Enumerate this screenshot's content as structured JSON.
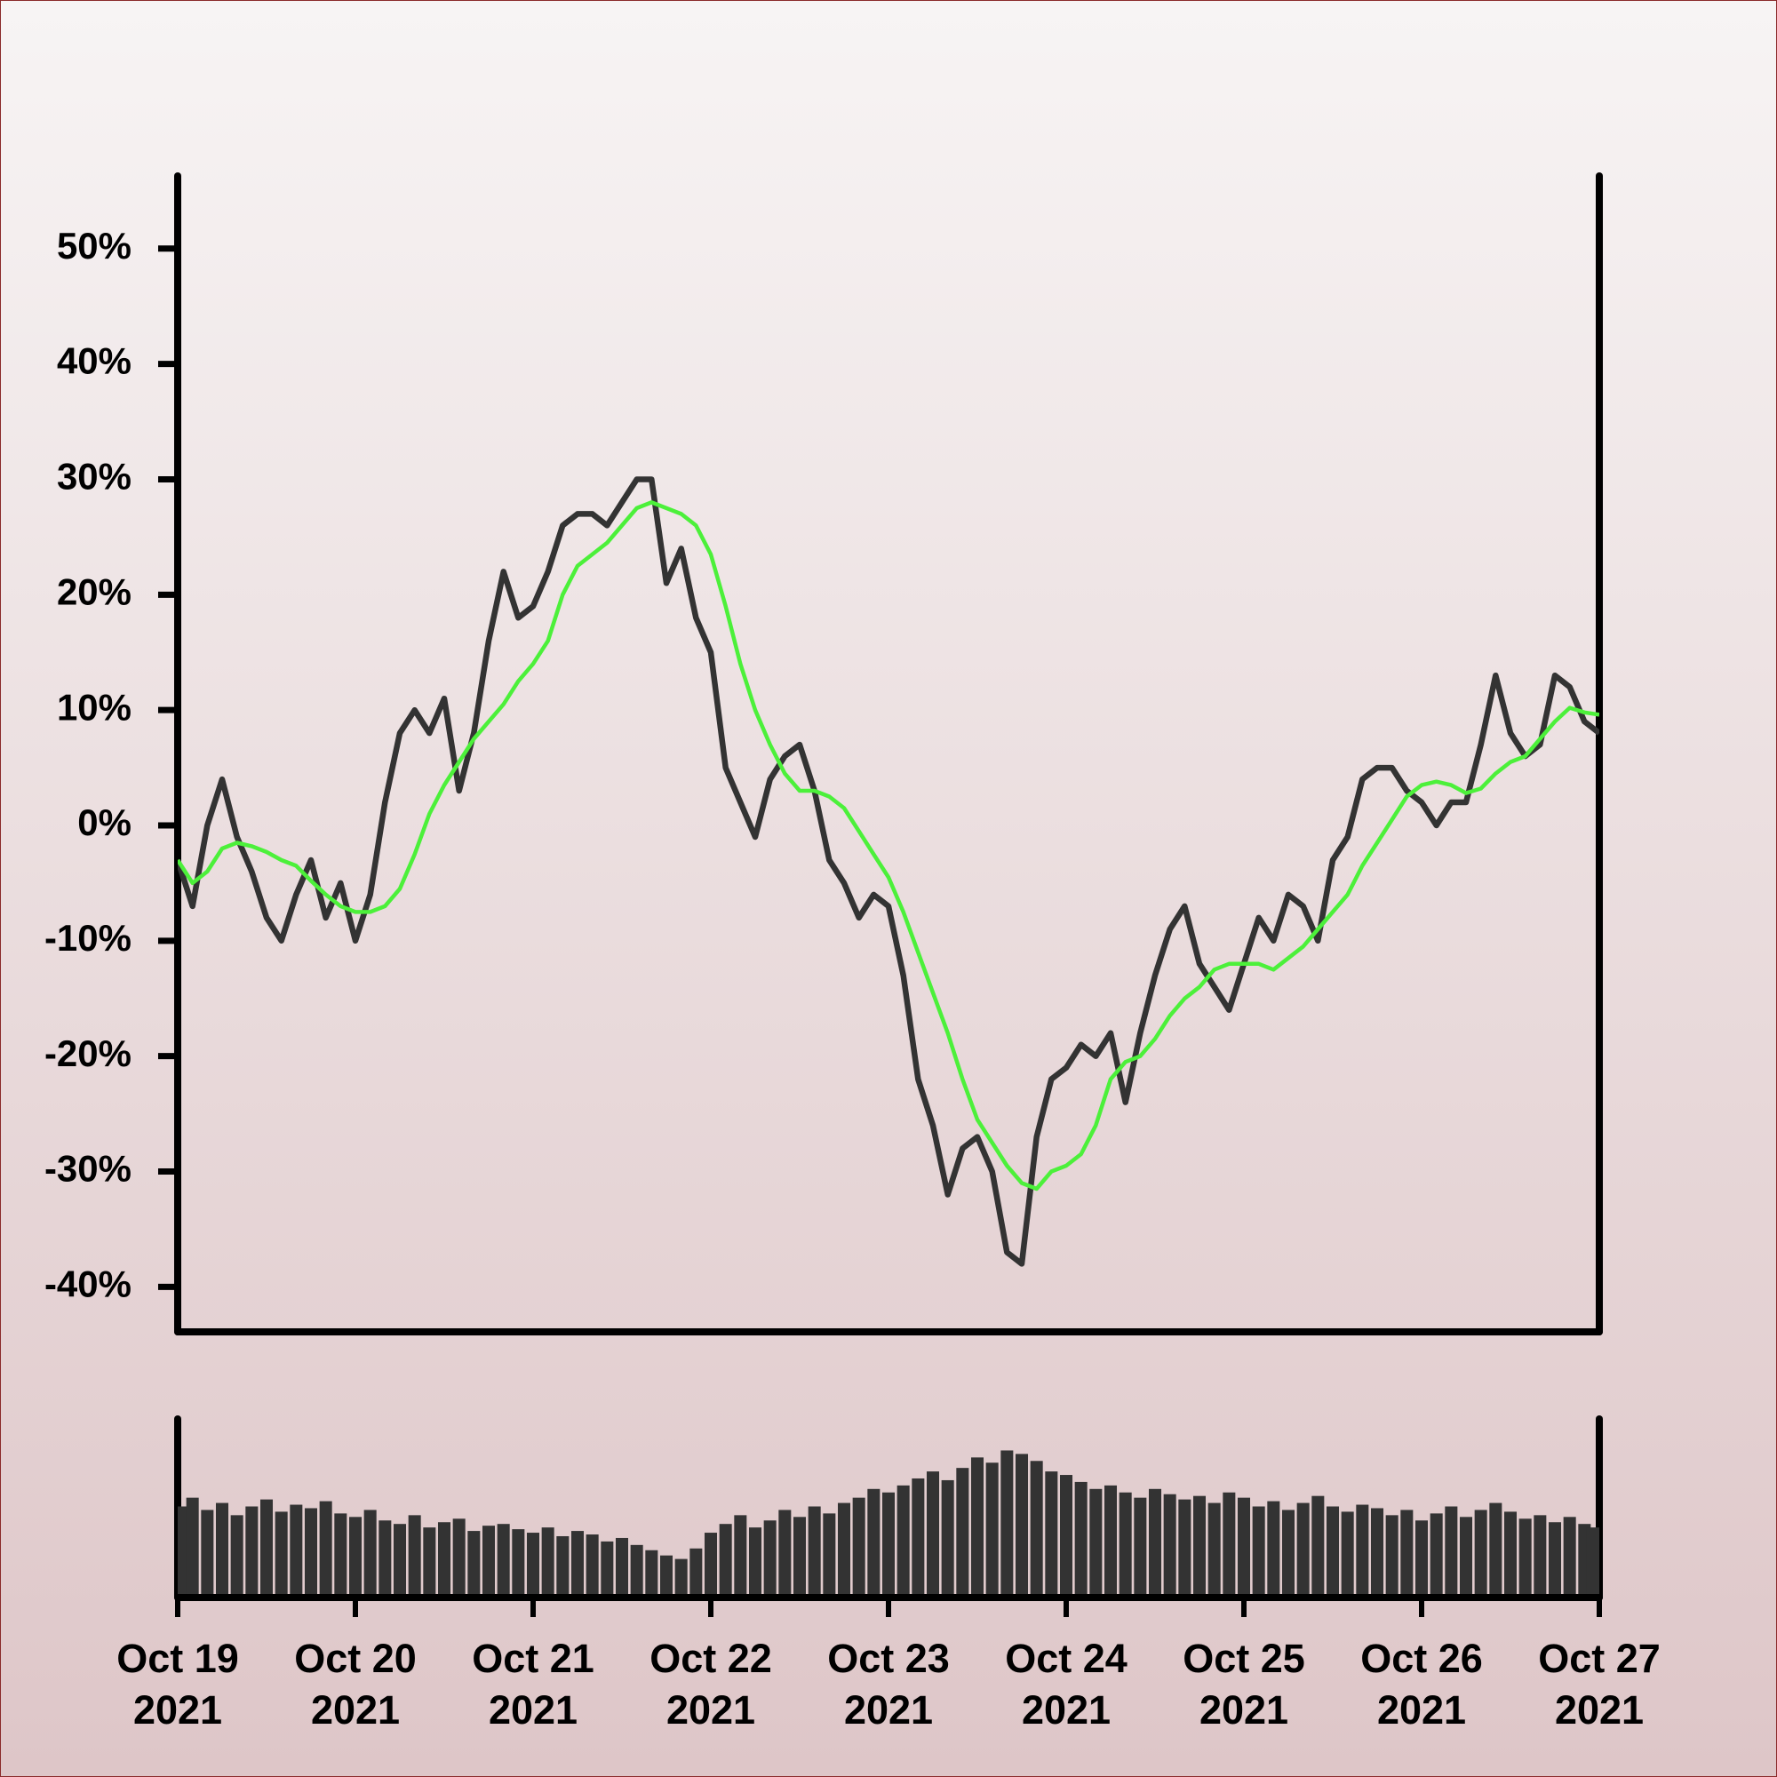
{
  "chart_data": [
    {
      "type": "line",
      "x": [
        "2021-10-19 00:00",
        "2021-10-19 02:00",
        "2021-10-19 04:00",
        "2021-10-19 06:00",
        "2021-10-19 08:00",
        "2021-10-19 10:00",
        "2021-10-19 12:00",
        "2021-10-19 14:00",
        "2021-10-19 16:00",
        "2021-10-19 18:00",
        "2021-10-19 20:00",
        "2021-10-19 22:00",
        "2021-10-20 00:00",
        "2021-10-20 02:00",
        "2021-10-20 04:00",
        "2021-10-20 06:00",
        "2021-10-20 08:00",
        "2021-10-20 10:00",
        "2021-10-20 12:00",
        "2021-10-20 14:00",
        "2021-10-20 16:00",
        "2021-10-20 18:00",
        "2021-10-20 20:00",
        "2021-10-20 22:00",
        "2021-10-21 00:00",
        "2021-10-21 02:00",
        "2021-10-21 04:00",
        "2021-10-21 06:00",
        "2021-10-21 08:00",
        "2021-10-21 10:00",
        "2021-10-21 12:00",
        "2021-10-21 14:00",
        "2021-10-21 16:00",
        "2021-10-21 18:00",
        "2021-10-21 20:00",
        "2021-10-21 22:00",
        "2021-10-22 00:00",
        "2021-10-22 02:00",
        "2021-10-22 04:00",
        "2021-10-22 06:00",
        "2021-10-22 08:00",
        "2021-10-22 10:00",
        "2021-10-22 12:00",
        "2021-10-22 14:00",
        "2021-10-22 16:00",
        "2021-10-22 18:00",
        "2021-10-22 20:00",
        "2021-10-22 22:00",
        "2021-10-23 00:00",
        "2021-10-23 02:00",
        "2021-10-23 04:00",
        "2021-10-23 06:00",
        "2021-10-23 08:00",
        "2021-10-23 10:00",
        "2021-10-23 12:00",
        "2021-10-23 14:00",
        "2021-10-23 16:00",
        "2021-10-23 18:00",
        "2021-10-23 20:00",
        "2021-10-23 22:00",
        "2021-10-24 00:00",
        "2021-10-24 02:00",
        "2021-10-24 04:00",
        "2021-10-24 06:00",
        "2021-10-24 08:00",
        "2021-10-24 10:00",
        "2021-10-24 12:00",
        "2021-10-24 14:00",
        "2021-10-24 16:00",
        "2021-10-24 18:00",
        "2021-10-24 20:00",
        "2021-10-24 22:00",
        "2021-10-25 00:00",
        "2021-10-25 02:00",
        "2021-10-25 04:00",
        "2021-10-25 06:00",
        "2021-10-25 08:00",
        "2021-10-25 10:00",
        "2021-10-25 12:00",
        "2021-10-25 14:00",
        "2021-10-25 16:00",
        "2021-10-25 18:00",
        "2021-10-25 20:00",
        "2021-10-25 22:00",
        "2021-10-26 00:00",
        "2021-10-26 02:00",
        "2021-10-26 04:00",
        "2021-10-26 06:00",
        "2021-10-26 08:00",
        "2021-10-26 10:00",
        "2021-10-26 12:00",
        "2021-10-26 14:00",
        "2021-10-26 16:00",
        "2021-10-26 18:00",
        "2021-10-26 20:00",
        "2021-10-26 22:00",
        "2021-10-27 00:00"
      ],
      "series": [
        {
          "color": "#333333",
          "values": [
            -3,
            -7,
            0,
            4,
            -1,
            -4,
            -8,
            -10,
            -6,
            -3,
            -8,
            -5,
            -10,
            -6,
            2,
            8,
            10,
            8,
            11,
            3,
            8,
            16,
            22,
            18,
            19,
            22,
            26,
            27,
            27,
            26,
            28,
            30,
            30,
            21,
            24,
            18,
            15,
            5,
            2,
            -1,
            4,
            6,
            7,
            3,
            -3,
            -5,
            -8,
            -6,
            -7,
            -13,
            -22,
            -26,
            -32,
            -28,
            -27,
            -30,
            -37,
            -38,
            -27,
            -22,
            -21,
            -19,
            -20,
            -18,
            -24,
            -18,
            -13,
            -9,
            -7,
            -12,
            -14,
            -16,
            -12,
            -8,
            -10,
            -6,
            -7,
            -10,
            -3,
            -1,
            4,
            5,
            5,
            3,
            2,
            0,
            2,
            2,
            7,
            13,
            8,
            6,
            7,
            13,
            12,
            9,
            8
          ]
        },
        {
          "color": "#4cf03a",
          "values": [
            -3,
            -5,
            -4,
            -2,
            -1.5,
            -1.8,
            -2.3,
            -3,
            -3.5,
            -4.8,
            -6,
            -7,
            -7.5,
            -7.5,
            -7,
            -5.5,
            -2.5,
            1,
            3.5,
            5.5,
            7.5,
            9,
            10.5,
            12.5,
            14,
            16,
            20,
            22.5,
            23.5,
            24.5,
            26,
            27.5,
            28,
            27.5,
            27,
            26,
            23.5,
            19,
            14,
            10,
            7,
            4.5,
            3,
            3,
            2.5,
            1.5,
            -0.5,
            -2.5,
            -4.5,
            -7.5,
            -11,
            -14.5,
            -18,
            -22,
            -25.5,
            -27.5,
            -29.5,
            -31,
            -31.5,
            -30,
            -29.5,
            -28.5,
            -26,
            -22,
            -20.5,
            -20,
            -18.5,
            -16.5,
            -15,
            -14,
            -12.5,
            -12,
            -12,
            -12,
            -12.5,
            -11.5,
            -10.5,
            -9,
            -7.5,
            -6,
            -3.5,
            -1.5,
            0.5,
            2.5,
            3.5,
            3.8,
            3.5,
            2.8,
            3.2,
            4.5,
            5.5,
            6,
            7.5,
            9,
            10.2,
            9.8,
            9.6
          ]
        }
      ],
      "ylim": [
        -43.9,
        56.3
      ],
      "yticks": [
        {
          "value": -40,
          "label": "-40%"
        },
        {
          "value": -30,
          "label": "-30%"
        },
        {
          "value": -20,
          "label": "-20%"
        },
        {
          "value": -10,
          "label": "-10%"
        },
        {
          "value": 0,
          "label": "0%"
        },
        {
          "value": 10,
          "label": "10%"
        },
        {
          "value": 20,
          "label": "20%"
        },
        {
          "value": 30,
          "label": "30%"
        },
        {
          "value": 40,
          "label": "40%"
        },
        {
          "value": 50,
          "label": "50%"
        }
      ],
      "xlim": [
        "2021-10-19 00:00",
        "2021-10-27 00:00"
      ]
    },
    {
      "type": "bar",
      "color": "#333333",
      "x": [
        "2021-10-19 00:00",
        "2021-10-19 02:00",
        "2021-10-19 04:00",
        "2021-10-19 06:00",
        "2021-10-19 08:00",
        "2021-10-19 10:00",
        "2021-10-19 12:00",
        "2021-10-19 14:00",
        "2021-10-19 16:00",
        "2021-10-19 18:00",
        "2021-10-19 20:00",
        "2021-10-19 22:00",
        "2021-10-20 00:00",
        "2021-10-20 02:00",
        "2021-10-20 04:00",
        "2021-10-20 06:00",
        "2021-10-20 08:00",
        "2021-10-20 10:00",
        "2021-10-20 12:00",
        "2021-10-20 14:00",
        "2021-10-20 16:00",
        "2021-10-20 18:00",
        "2021-10-20 20:00",
        "2021-10-20 22:00",
        "2021-10-21 00:00",
        "2021-10-21 02:00",
        "2021-10-21 04:00",
        "2021-10-21 06:00",
        "2021-10-21 08:00",
        "2021-10-21 10:00",
        "2021-10-21 12:00",
        "2021-10-21 14:00",
        "2021-10-21 16:00",
        "2021-10-21 18:00",
        "2021-10-21 20:00",
        "2021-10-21 22:00",
        "2021-10-22 00:00",
        "2021-10-22 02:00",
        "2021-10-22 04:00",
        "2021-10-22 06:00",
        "2021-10-22 08:00",
        "2021-10-22 10:00",
        "2021-10-22 12:00",
        "2021-10-22 14:00",
        "2021-10-22 16:00",
        "2021-10-22 18:00",
        "2021-10-22 20:00",
        "2021-10-22 22:00",
        "2021-10-23 00:00",
        "2021-10-23 02:00",
        "2021-10-23 04:00",
        "2021-10-23 06:00",
        "2021-10-23 08:00",
        "2021-10-23 10:00",
        "2021-10-23 12:00",
        "2021-10-23 14:00",
        "2021-10-23 16:00",
        "2021-10-23 18:00",
        "2021-10-23 20:00",
        "2021-10-23 22:00",
        "2021-10-24 00:00",
        "2021-10-24 02:00",
        "2021-10-24 04:00",
        "2021-10-24 06:00",
        "2021-10-24 08:00",
        "2021-10-24 10:00",
        "2021-10-24 12:00",
        "2021-10-24 14:00",
        "2021-10-24 16:00",
        "2021-10-24 18:00",
        "2021-10-24 20:00",
        "2021-10-24 22:00",
        "2021-10-25 00:00",
        "2021-10-25 02:00",
        "2021-10-25 04:00",
        "2021-10-25 06:00",
        "2021-10-25 08:00",
        "2021-10-25 10:00",
        "2021-10-25 12:00",
        "2021-10-25 14:00",
        "2021-10-25 16:00",
        "2021-10-25 18:00",
        "2021-10-25 20:00",
        "2021-10-25 22:00",
        "2021-10-26 00:00",
        "2021-10-26 02:00",
        "2021-10-26 04:00",
        "2021-10-26 06:00",
        "2021-10-26 08:00",
        "2021-10-26 10:00",
        "2021-10-26 12:00",
        "2021-10-26 14:00",
        "2021-10-26 16:00",
        "2021-10-26 18:00",
        "2021-10-26 20:00",
        "2021-10-26 22:00",
        "2021-10-27 00:00"
      ],
      "values": [
        50,
        55,
        48,
        52,
        45,
        50,
        54,
        47,
        51,
        49,
        53,
        46,
        44,
        48,
        42,
        40,
        45,
        38,
        41,
        43,
        36,
        39,
        40,
        37,
        35,
        38,
        33,
        36,
        34,
        30,
        32,
        28,
        25,
        22,
        20,
        26,
        35,
        40,
        45,
        38,
        42,
        48,
        44,
        50,
        46,
        52,
        55,
        60,
        58,
        62,
        66,
        70,
        65,
        72,
        78,
        75,
        82,
        80,
        76,
        70,
        68,
        64,
        60,
        62,
        58,
        55,
        60,
        57,
        54,
        56,
        52,
        58,
        55,
        50,
        53,
        48,
        52,
        56,
        50,
        47,
        51,
        49,
        45,
        48,
        42,
        46,
        50,
        44,
        48,
        52,
        47,
        43,
        45,
        41,
        44,
        40,
        38
      ],
      "ylim": [
        0,
        100
      ],
      "xlim": [
        "2021-10-19 00:00",
        "2021-10-27 00:00"
      ],
      "xticks": [
        {
          "value": "2021-10-19 00:00",
          "label": "Oct 19\n2021"
        },
        {
          "value": "2021-10-20 00:00",
          "label": "Oct 20\n2021"
        },
        {
          "value": "2021-10-21 00:00",
          "label": "Oct 21\n2021"
        },
        {
          "value": "2021-10-22 00:00",
          "label": "Oct 22\n2021"
        },
        {
          "value": "2021-10-23 00:00",
          "label": "Oct 23\n2021"
        },
        {
          "value": "2021-10-24 00:00",
          "label": "Oct 24\n2021"
        },
        {
          "value": "2021-10-25 00:00",
          "label": "Oct 25\n2021"
        },
        {
          "value": "2021-10-26 00:00",
          "label": "Oct 26\n2021"
        },
        {
          "value": "2021-10-27 00:00",
          "label": "Oct 27\n2021"
        }
      ]
    }
  ]
}
